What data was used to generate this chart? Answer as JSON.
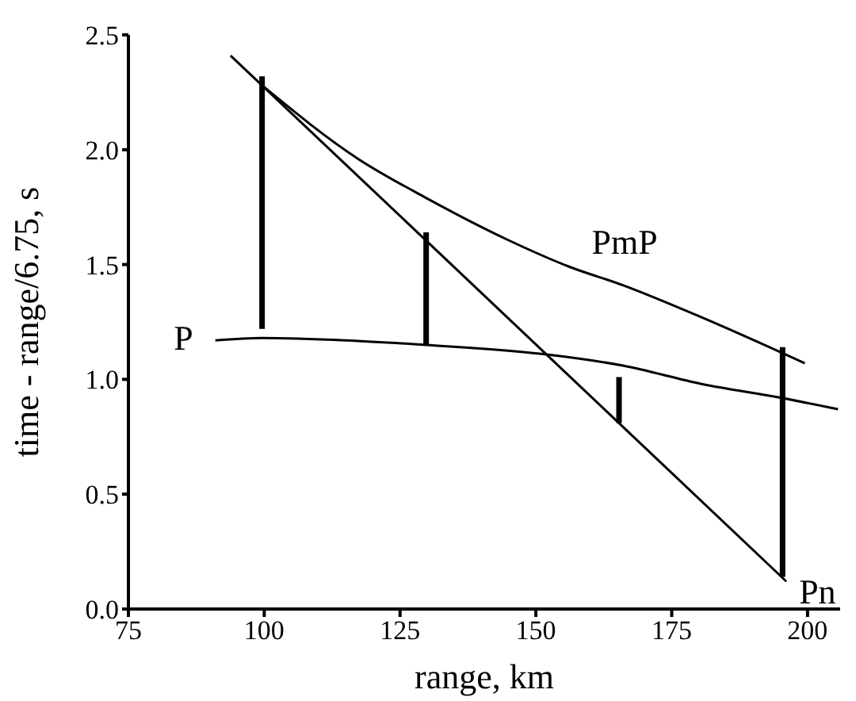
{
  "chart_data": {
    "type": "line",
    "xlabel": "range, km",
    "ylabel": "time - range/6.75, s",
    "xlim": [
      75,
      206
    ],
    "xticks": [
      75,
      100,
      125,
      150,
      175,
      200
    ],
    "ylim": [
      0,
      2.5
    ],
    "yticks": [
      {
        "value": 0,
        "label": "0.0"
      },
      {
        "value": 0.5,
        "label": "0.5"
      },
      {
        "value": 1,
        "label": "1.0"
      },
      {
        "value": 1.5,
        "label": "1.5"
      },
      {
        "value": 2,
        "label": "2.0"
      },
      {
        "value": 2.5,
        "label": "2.5"
      }
    ],
    "legend": false,
    "marker": "none",
    "line_style": "solid",
    "series": [
      {
        "name": "P",
        "color": "#000000",
        "x": [
          91,
          99.6,
          115,
          129.8,
          151.4,
          166,
          180.5,
          195,
          205.6
        ],
        "values": [
          1.17,
          1.18,
          1.17,
          1.15,
          1.11,
          1.06,
          0.98,
          0.92,
          0.87
        ]
      },
      {
        "name": "PmP",
        "color": "#000000",
        "x": [
          99.6,
          117.3,
          129.8,
          144.6,
          156.2,
          166,
          180.5,
          199.5
        ],
        "values": [
          2.28,
          1.96,
          1.79,
          1.61,
          1.49,
          1.41,
          1.27,
          1.07
        ]
      },
      {
        "name": "Pn",
        "color": "#000000",
        "x": [
          93.8,
          196.1
        ],
        "values": [
          2.41,
          0.12
        ]
      },
      {
        "color": "#000000",
        "x": [
          99.6,
          99.6
        ],
        "values": [
          1.22,
          2.32
        ]
      },
      {
        "color": "#000000",
        "x": [
          129.8,
          129.8
        ],
        "values": [
          1.15,
          1.64
        ]
      },
      {
        "color": "#000000",
        "x": [
          165.3,
          165.3
        ],
        "values": [
          0.81,
          1.01
        ]
      },
      {
        "color": "#000000",
        "x": [
          195.4,
          195.4
        ],
        "values": [
          0.14,
          1.14
        ]
      }
    ]
  }
}
